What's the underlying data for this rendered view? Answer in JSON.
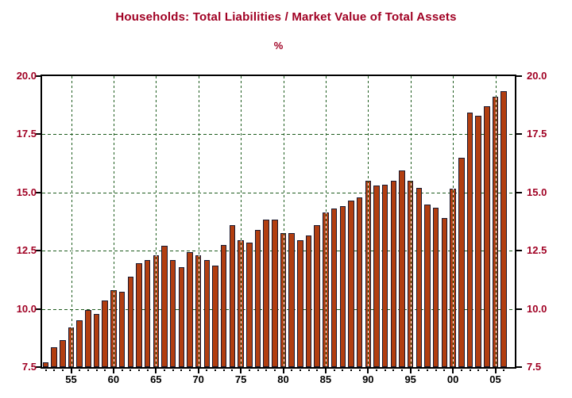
{
  "title": "Households: Total Liabilities / Market Value of Total Assets",
  "subtitle": "%",
  "chart_data": {
    "type": "bar",
    "title": "Households: Total Liabilities / Market Value of Total Assets",
    "ylabel": "%",
    "xlabel": "",
    "ylim": [
      7.5,
      20.0
    ],
    "yticks": [
      7.5,
      10.0,
      12.5,
      15.0,
      17.5,
      20.0
    ],
    "ytick_labels": [
      "7.5",
      "10.0",
      "12.5",
      "15.0",
      "17.5",
      "20.0"
    ],
    "xtick_years": [
      1955,
      1960,
      1965,
      1970,
      1975,
      1980,
      1985,
      1990,
      1995,
      2000,
      2005
    ],
    "xtick_labels": [
      "55",
      "60",
      "65",
      "70",
      "75",
      "80",
      "85",
      "90",
      "95",
      "00",
      "05"
    ],
    "grid": "dashed green, horizontal behind bars at 10/12.5/15/17.5, vertical over bars at 5-year marks",
    "legend": "none",
    "x": [
      1952,
      1953,
      1954,
      1955,
      1956,
      1957,
      1958,
      1959,
      1960,
      1961,
      1962,
      1963,
      1964,
      1965,
      1966,
      1967,
      1968,
      1969,
      1970,
      1971,
      1972,
      1973,
      1974,
      1975,
      1976,
      1977,
      1978,
      1979,
      1980,
      1981,
      1982,
      1983,
      1984,
      1985,
      1986,
      1987,
      1988,
      1989,
      1990,
      1991,
      1992,
      1993,
      1994,
      1995,
      1996,
      1997,
      1998,
      1999,
      2000,
      2001,
      2002,
      2003,
      2004,
      2005,
      2006
    ],
    "values": [
      7.7,
      8.35,
      8.65,
      9.2,
      9.5,
      9.95,
      9.8,
      10.35,
      10.8,
      10.75,
      11.4,
      11.95,
      12.1,
      12.3,
      12.7,
      12.1,
      11.8,
      12.45,
      12.3,
      12.1,
      11.85,
      12.75,
      13.6,
      12.95,
      12.85,
      13.4,
      13.85,
      13.85,
      13.25,
      13.25,
      12.95,
      13.15,
      13.6,
      14.15,
      14.3,
      14.4,
      14.65,
      14.8,
      15.5,
      15.3,
      15.35,
      15.5,
      15.95,
      15.5,
      15.2,
      14.5,
      14.35,
      13.9,
      15.15,
      16.5,
      18.45,
      18.3,
      18.7,
      19.1,
      19.35
    ],
    "colors": {
      "bar_fill": "#B23E10",
      "bar_border": "#1A1A30",
      "grid_green": "#1E5C1E",
      "title_red": "#A00023",
      "axis_label_red": "#A00023",
      "xtick_label_black": "#000000",
      "frame_black": "#000000",
      "background": "#FFFFFF"
    }
  }
}
